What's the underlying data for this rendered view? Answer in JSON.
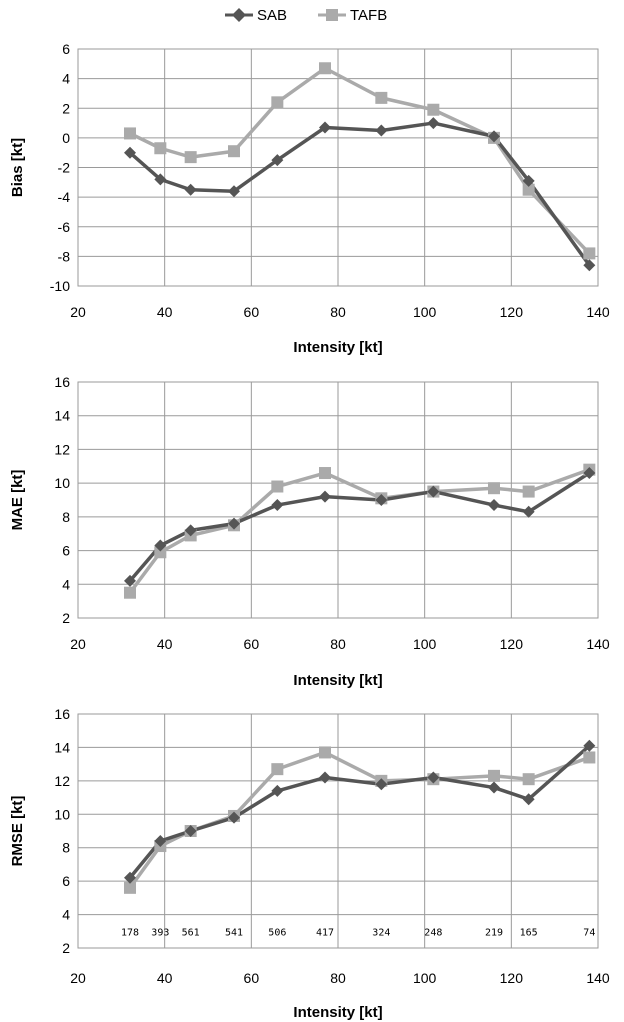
{
  "legend": {
    "entries": [
      {
        "name": "SAB",
        "color": "#555555",
        "marker": "diamond"
      },
      {
        "name": "TAFB",
        "color": "#aaaaaa",
        "marker": "square"
      }
    ],
    "placement": "top-center"
  },
  "chart_data": [
    {
      "type": "line",
      "xlabel": "Intensity [kt]",
      "ylabel": "Bias [kt]",
      "xlim": [
        20,
        140
      ],
      "ylim": [
        -10,
        6
      ],
      "xticks": [
        20,
        40,
        60,
        80,
        100,
        120,
        140
      ],
      "yticks": [
        -10,
        -8,
        -6,
        -4,
        -2,
        0,
        2,
        4,
        6
      ],
      "grid": true,
      "x": [
        32,
        39,
        46,
        56,
        66,
        77,
        90,
        102,
        116,
        124,
        138
      ],
      "series": [
        {
          "name": "SAB",
          "values": [
            -1.0,
            -2.8,
            -3.5,
            -3.6,
            -1.5,
            0.7,
            0.5,
            1.0,
            0.1,
            -2.9,
            -8.6
          ]
        },
        {
          "name": "TAFB",
          "values": [
            0.3,
            -0.7,
            -1.3,
            -0.9,
            2.4,
            4.7,
            2.7,
            1.9,
            0.0,
            -3.5,
            -7.8
          ]
        }
      ]
    },
    {
      "type": "line",
      "xlabel": "Intensity [kt]",
      "ylabel": "MAE [kt]",
      "xlim": [
        20,
        140
      ],
      "ylim": [
        2,
        16
      ],
      "xticks": [
        20,
        40,
        60,
        80,
        100,
        120,
        140
      ],
      "yticks": [
        2,
        4,
        6,
        8,
        10,
        12,
        14,
        16
      ],
      "grid": true,
      "x": [
        32,
        39,
        46,
        56,
        66,
        77,
        90,
        102,
        116,
        124,
        138
      ],
      "series": [
        {
          "name": "SAB",
          "values": [
            4.2,
            6.3,
            7.2,
            7.6,
            8.7,
            9.2,
            9.0,
            9.5,
            8.7,
            8.3,
            10.6
          ]
        },
        {
          "name": "TAFB",
          "values": [
            3.5,
            5.9,
            6.9,
            7.5,
            9.8,
            10.6,
            9.1,
            9.5,
            9.7,
            9.5,
            10.8
          ]
        }
      ]
    },
    {
      "type": "line",
      "xlabel": "Intensity [kt]",
      "ylabel": "RMSE [kt]",
      "xlim": [
        20,
        140
      ],
      "ylim": [
        2,
        16
      ],
      "xticks": [
        20,
        40,
        60,
        80,
        100,
        120,
        140
      ],
      "yticks": [
        2,
        4,
        6,
        8,
        10,
        12,
        14,
        16
      ],
      "grid": true,
      "x": [
        32,
        39,
        46,
        56,
        66,
        77,
        90,
        102,
        116,
        124,
        138
      ],
      "series": [
        {
          "name": "SAB",
          "values": [
            6.2,
            8.4,
            9.0,
            9.8,
            11.4,
            12.2,
            11.8,
            12.2,
            11.6,
            10.9,
            14.1
          ]
        },
        {
          "name": "TAFB",
          "values": [
            5.6,
            8.1,
            9.0,
            9.9,
            12.7,
            13.7,
            12.0,
            12.1,
            12.3,
            12.1,
            13.4
          ]
        }
      ],
      "annotations": {
        "counts": [
          "178",
          "393",
          "561",
          "541",
          "506",
          "417",
          "324",
          "248",
          "219",
          "165",
          "74"
        ],
        "y": 3.0
      }
    }
  ]
}
